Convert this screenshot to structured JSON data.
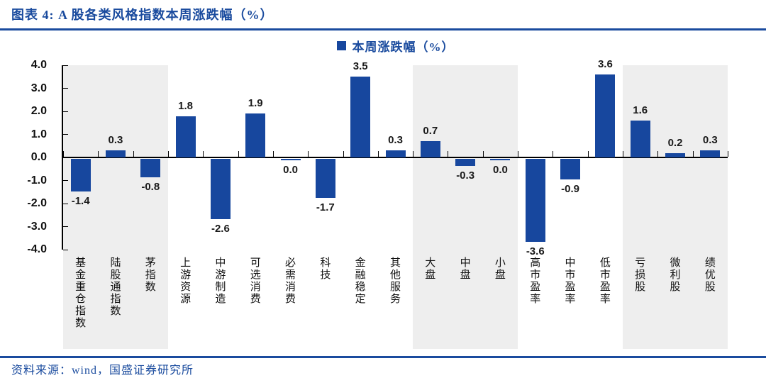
{
  "header": {
    "title": "图表 4: A 股各类风格指数本周涨跌幅（%）"
  },
  "footer": {
    "source": "资料来源：wind，国盛证券研究所"
  },
  "colors": {
    "accent_navy": "#1A4B9E",
    "bar_blue": "#17479E",
    "band_gray": "#EEEEEE",
    "axis_black": "#000000",
    "value_label": "#1A1A1A"
  },
  "chart_data": {
    "type": "bar",
    "title": "A 股各类风格指数本周涨跌幅（%）",
    "series_label": "本周涨跌幅（%）",
    "categories": [
      "基金重仓指数",
      "陆股通指数",
      "茅指数",
      "上游资源",
      "中游制造",
      "可选消费",
      "必需消费",
      "科技",
      "金融稳定",
      "其他服务",
      "大盘",
      "中盘",
      "小盘",
      "高市盈率",
      "中市盈率",
      "低市盈率",
      "亏损股",
      "微利股",
      "绩优股"
    ],
    "values": [
      -1.4,
      0.3,
      -0.8,
      1.8,
      -2.6,
      1.9,
      0.0,
      -1.7,
      3.5,
      0.3,
      0.7,
      -0.3,
      0.0,
      -3.6,
      -0.9,
      3.6,
      1.6,
      0.2,
      0.3
    ],
    "ylim": [
      -4.0,
      4.0
    ],
    "ystep": 1.0,
    "xlabel": "",
    "ylabel": "",
    "grid": "off",
    "legend_position": "top-center",
    "band_groups": [
      [
        0,
        2
      ],
      [
        10,
        12
      ],
      [
        16,
        18
      ]
    ]
  }
}
